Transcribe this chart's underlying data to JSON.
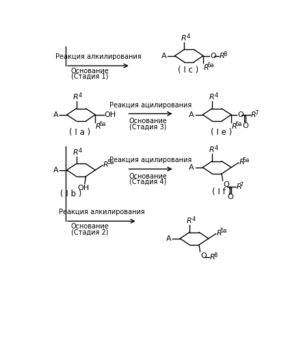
{
  "bg_color": "#ffffff",
  "line_color": "#000000",
  "text_color": "#000000",
  "reactions": [
    {
      "line1": "Реакция алкилирования",
      "line2": "Основание",
      "line3": "(Стадия 1)"
    },
    {
      "line1": "Реакция ацилирования",
      "line2": "Основание",
      "line3": "(Стадия 3)"
    },
    {
      "line1": "Реакция ацилирования",
      "line2": "Основание",
      "line3": "(Стадия 4)"
    },
    {
      "line1": "Реакция алкилирования",
      "line2": "Основание",
      "line3": "(Стадия 2)"
    }
  ],
  "labels": {
    "Ic": "( I c )",
    "Ia": "( I a )",
    "Ie": "( I e )",
    "Ib": "( I b )",
    "If": "( I f )"
  }
}
